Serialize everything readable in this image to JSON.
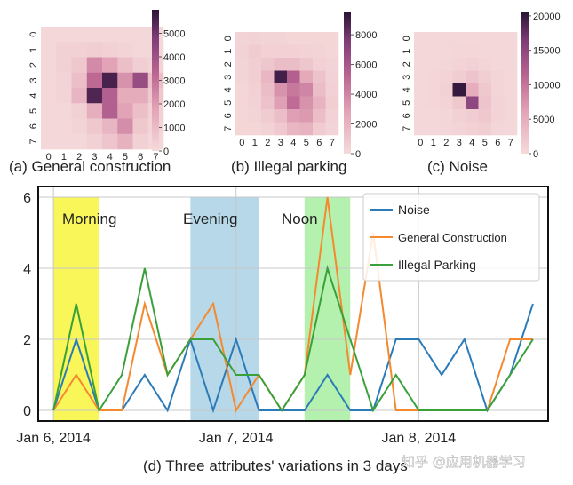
{
  "heatmaps": [
    {
      "id": "general",
      "caption": "(a) General construction",
      "x_ticks": [
        "0",
        "1",
        "2",
        "3",
        "4",
        "5",
        "6",
        "7"
      ],
      "y_ticks": [
        "0",
        "1",
        "2",
        "3",
        "4",
        "5",
        "6",
        "7"
      ],
      "colorbar": {
        "max": 6000,
        "ticks": [
          "5000",
          "4000",
          "3000",
          "2000",
          "1000",
          "0"
        ],
        "tick_values": [
          5000,
          4000,
          3000,
          2000,
          1000,
          0
        ]
      },
      "values": [
        [
          100,
          100,
          100,
          100,
          100,
          100,
          100,
          100
        ],
        [
          100,
          300,
          300,
          400,
          300,
          200,
          100,
          100
        ],
        [
          100,
          300,
          600,
          2400,
          1800,
          900,
          400,
          200
        ],
        [
          100,
          200,
          900,
          3200,
          5600,
          2200,
          4200,
          900
        ],
        [
          100,
          200,
          1200,
          5500,
          3500,
          1500,
          1500,
          600
        ],
        [
          100,
          100,
          300,
          1400,
          3500,
          1800,
          900,
          300
        ],
        [
          100,
          100,
          200,
          600,
          1200,
          2300,
          600,
          200
        ],
        [
          100,
          100,
          100,
          300,
          700,
          1300,
          300,
          100
        ]
      ]
    },
    {
      "id": "parking",
      "caption": "(b) Illegal parking",
      "x_ticks": [
        "0",
        "1",
        "2",
        "3",
        "4",
        "5",
        "6",
        "7"
      ],
      "y_ticks": [
        "0",
        "1",
        "2",
        "3",
        "4",
        "5",
        "6",
        "7"
      ],
      "colorbar": {
        "max": 9500,
        "ticks": [
          "8000",
          "6000",
          "4000",
          "2000",
          "0"
        ],
        "tick_values": [
          8000,
          6000,
          4000,
          2000,
          0
        ]
      },
      "values": [
        [
          300,
          400,
          300,
          300,
          200,
          200,
          200,
          200
        ],
        [
          400,
          700,
          500,
          500,
          500,
          400,
          300,
          200
        ],
        [
          300,
          600,
          1000,
          1500,
          1500,
          1000,
          500,
          300
        ],
        [
          300,
          600,
          1800,
          9000,
          5500,
          2500,
          1200,
          400
        ],
        [
          200,
          500,
          1500,
          3500,
          4500,
          4000,
          1500,
          500
        ],
        [
          200,
          400,
          1200,
          3000,
          5000,
          3500,
          2000,
          600
        ],
        [
          200,
          300,
          800,
          1500,
          3000,
          3200,
          1500,
          400
        ],
        [
          200,
          200,
          400,
          900,
          1800,
          2000,
          800,
          300
        ]
      ]
    },
    {
      "id": "noise",
      "caption": "(c) Noise",
      "x_ticks": [
        "0",
        "1",
        "2",
        "3",
        "4",
        "5",
        "6",
        "7"
      ],
      "y_ticks": [
        "0",
        "1",
        "2",
        "3",
        "4",
        "5",
        "6",
        "7"
      ],
      "colorbar": {
        "max": 20500,
        "ticks": [
          "20000",
          "15000",
          "10000",
          "5000",
          "0"
        ],
        "tick_values": [
          20000,
          15000,
          10000,
          5000,
          0
        ]
      },
      "values": [
        [
          300,
          300,
          300,
          300,
          300,
          300,
          300,
          300
        ],
        [
          300,
          300,
          300,
          400,
          400,
          300,
          300,
          300
        ],
        [
          300,
          300,
          500,
          800,
          1000,
          600,
          300,
          300
        ],
        [
          300,
          400,
          800,
          1500,
          2500,
          1300,
          600,
          300
        ],
        [
          300,
          400,
          1000,
          20000,
          5000,
          2000,
          600,
          300
        ],
        [
          300,
          400,
          800,
          2000,
          15000,
          2500,
          800,
          300
        ],
        [
          300,
          300,
          500,
          1000,
          1500,
          2000,
          800,
          300
        ],
        [
          300,
          300,
          400,
          700,
          1000,
          1300,
          500,
          300
        ]
      ]
    }
  ],
  "chart_data": {
    "type": "line",
    "title": "",
    "caption": "(d) Three attributes' variations in 3 days",
    "x_tick_labels": [
      "Jan 6, 2014",
      "Jan 7, 2014",
      "Jan 8, 2014"
    ],
    "x_tick_hours": [
      0,
      24,
      48
    ],
    "x_range": [
      -2,
      65
    ],
    "ylim": [
      -0.3,
      6.3
    ],
    "y_ticks": [
      0,
      2,
      4,
      6
    ],
    "bands": [
      {
        "label": "Morning",
        "start": 0,
        "end": 6,
        "color": "#f8f53c"
      },
      {
        "label": "Evening",
        "start": 18,
        "end": 27,
        "color": "#a9d1e4"
      },
      {
        "label": "Noon",
        "start": 33,
        "end": 39,
        "color": "#a8eea0"
      }
    ],
    "x": [
      0,
      3,
      6,
      9,
      12,
      15,
      18,
      21,
      24,
      27,
      30,
      33,
      36,
      39,
      42,
      45,
      48,
      51,
      54,
      57,
      60,
      63
    ],
    "series": [
      {
        "name": "Noise",
        "color": "#2b7bb9",
        "values": [
          0,
          2,
          0,
          0,
          1,
          0,
          2,
          0,
          2,
          0,
          0,
          0,
          1,
          0,
          0,
          2,
          2,
          1,
          2,
          0,
          1,
          3
        ]
      },
      {
        "name": "General Construction",
        "color": "#f5892e",
        "values": [
          0,
          1,
          0,
          0,
          3,
          1,
          2,
          3,
          0,
          1,
          0,
          1,
          6,
          1,
          5,
          0,
          0,
          0,
          0,
          0,
          2,
          2
        ]
      },
      {
        "name": "Illegal Parking",
        "color": "#3aa03a",
        "values": [
          0,
          3,
          0,
          1,
          4,
          1,
          2,
          2,
          1,
          1,
          0,
          1,
          4,
          2,
          0,
          1,
          0,
          0,
          0,
          0,
          1,
          2
        ]
      }
    ]
  },
  "watermark": "知乎 @应用机器学习"
}
